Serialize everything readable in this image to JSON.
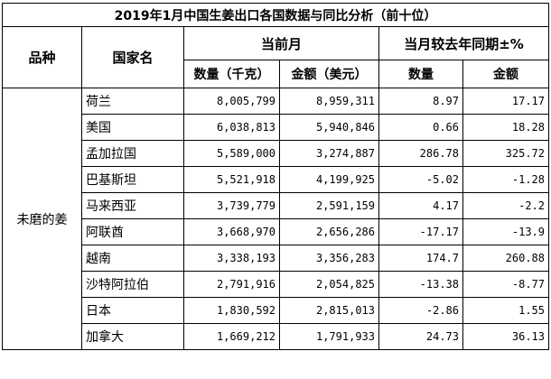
{
  "title": "2019年1月中国生姜出口各国数据与同比分析（前十位）",
  "headers": {
    "kind": "品种",
    "country": "国家名",
    "current_month": "当前月",
    "yoy": "当月较去年同期±%",
    "qty": "数量（千克）",
    "amount": "金额（美元）",
    "qty2": "数量",
    "amount2": "金额"
  },
  "kind_value": "未磨的姜",
  "rows": [
    {
      "country": "荷兰",
      "qty": "8,005,799",
      "amount": "8,959,311",
      "qty_pct": "8.97",
      "amt_pct": "17.17"
    },
    {
      "country": "美国",
      "qty": "6,038,813",
      "amount": "5,940,846",
      "qty_pct": "0.66",
      "amt_pct": "18.28"
    },
    {
      "country": "孟加拉国",
      "qty": "5,589,000",
      "amount": "3,274,887",
      "qty_pct": "286.78",
      "amt_pct": "325.72"
    },
    {
      "country": "巴基斯坦",
      "qty": "5,521,918",
      "amount": "4,199,925",
      "qty_pct": "-5.02",
      "amt_pct": "-1.28"
    },
    {
      "country": "马来西亚",
      "qty": "3,739,779",
      "amount": "2,591,159",
      "qty_pct": "4.17",
      "amt_pct": "-2.2"
    },
    {
      "country": "阿联酋",
      "qty": "3,668,970",
      "amount": "2,656,286",
      "qty_pct": "-17.17",
      "amt_pct": "-13.9"
    },
    {
      "country": "越南",
      "qty": "3,338,193",
      "amount": "3,356,283",
      "qty_pct": "174.7",
      "amt_pct": "260.88"
    },
    {
      "country": "沙特阿拉伯",
      "qty": "2,791,916",
      "amount": "2,054,825",
      "qty_pct": "-13.38",
      "amt_pct": "-8.77"
    },
    {
      "country": "日本",
      "qty": "1,830,592",
      "amount": "2,815,013",
      "qty_pct": "-2.86",
      "amt_pct": "1.55"
    },
    {
      "country": "加拿大",
      "qty": "1,669,212",
      "amount": "1,791,933",
      "qty_pct": "24.73",
      "amt_pct": "36.13"
    }
  ]
}
